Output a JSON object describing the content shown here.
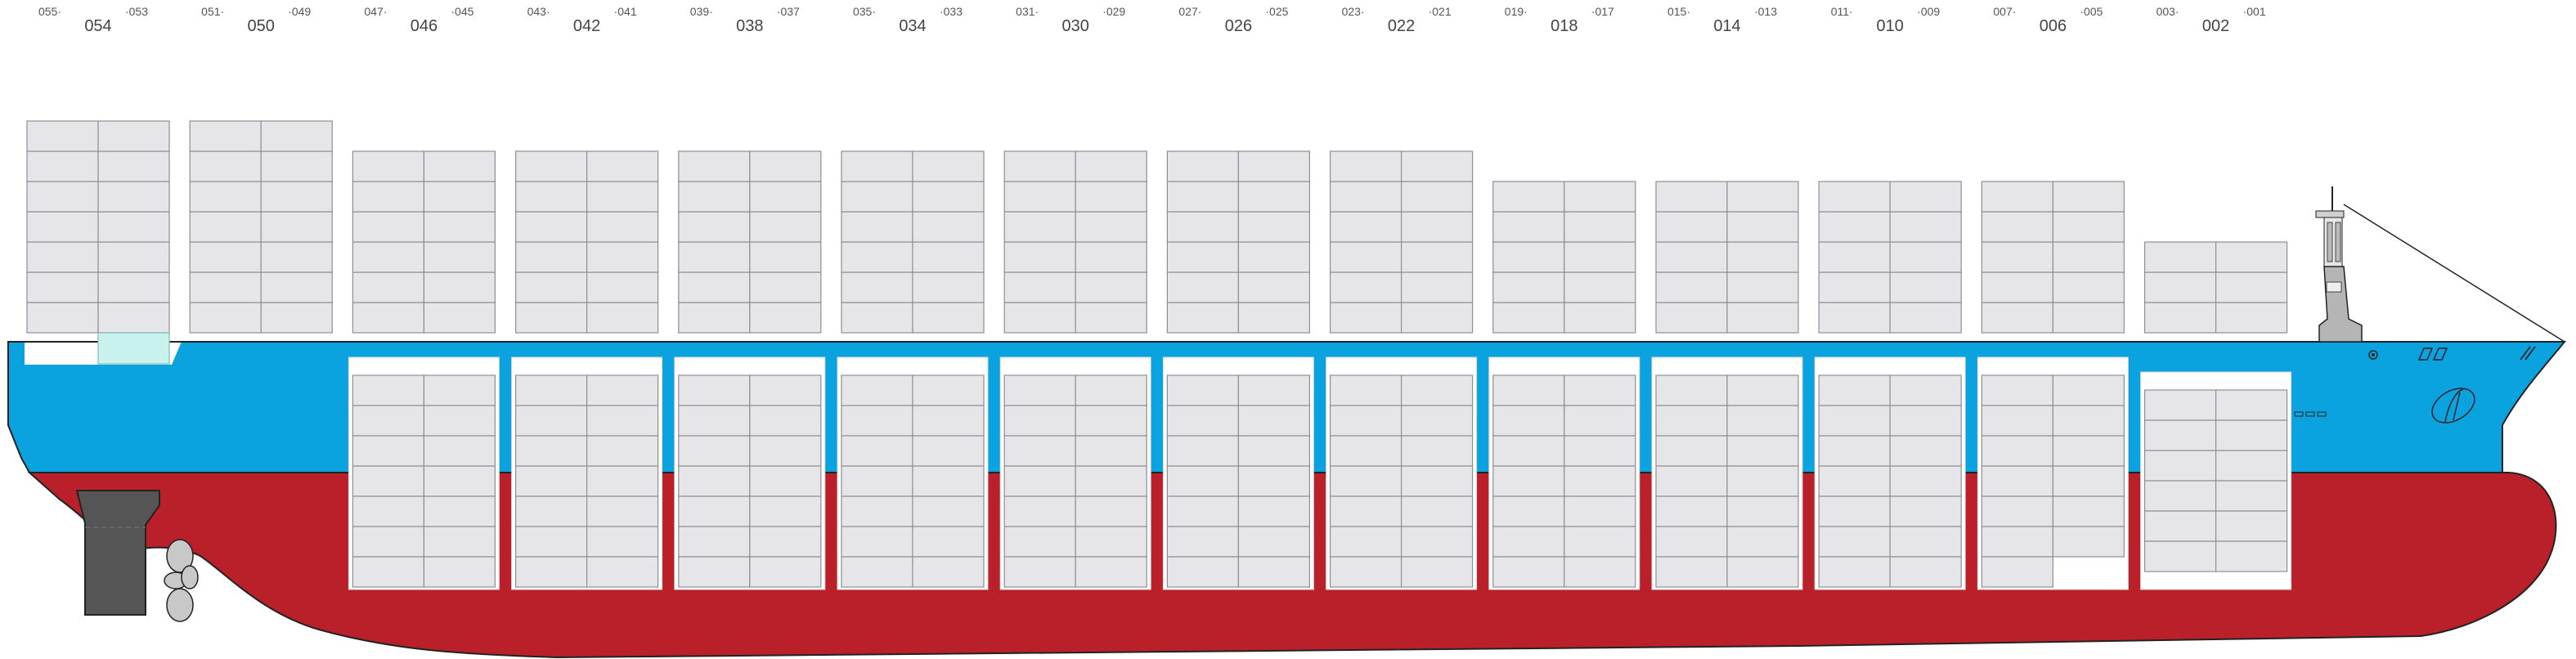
{
  "colors": {
    "hull_upper": "#0aa3df",
    "hull_lower": "#b9202a",
    "hull_outline": "#222222",
    "rudder": "#555555",
    "propeller": "#c8c8c8",
    "superstructure": "#b5b5b5",
    "container_fill": "#e6e6e9",
    "container_stroke": "#8e8e96",
    "highlight_fill": "#c9f1ee"
  },
  "bays": [
    {
      "main": "054",
      "aft": "055",
      "fwd": "053",
      "deck_tiers": 7,
      "hold_tiers": 0
    },
    {
      "main": "050",
      "aft": "051",
      "fwd": "049",
      "deck_tiers": 7,
      "hold_tiers": 0
    },
    {
      "main": "046",
      "aft": "047",
      "fwd": "045",
      "deck_tiers": 6,
      "hold_tiers": 7
    },
    {
      "main": "042",
      "aft": "043",
      "fwd": "041",
      "deck_tiers": 6,
      "hold_tiers": 7
    },
    {
      "main": "038",
      "aft": "039",
      "fwd": "037",
      "deck_tiers": 6,
      "hold_tiers": 7
    },
    {
      "main": "034",
      "aft": "035",
      "fwd": "033",
      "deck_tiers": 6,
      "hold_tiers": 7
    },
    {
      "main": "030",
      "aft": "031",
      "fwd": "029",
      "deck_tiers": 6,
      "hold_tiers": 7
    },
    {
      "main": "026",
      "aft": "027",
      "fwd": "025",
      "deck_tiers": 6,
      "hold_tiers": 7
    },
    {
      "main": "022",
      "aft": "023",
      "fwd": "021",
      "deck_tiers": 6,
      "hold_tiers": 7
    },
    {
      "main": "018",
      "aft": "019",
      "fwd": "017",
      "deck_tiers": 5,
      "hold_tiers": 7
    },
    {
      "main": "014",
      "aft": "015",
      "fwd": "013",
      "deck_tiers": 5,
      "hold_tiers": 7
    },
    {
      "main": "010",
      "aft": "011",
      "fwd": "009",
      "deck_tiers": 5,
      "hold_tiers": 7
    },
    {
      "main": "006",
      "aft": "007",
      "fwd": "005",
      "deck_tiers": 5,
      "hold_tiers": 6
    },
    {
      "main": "002",
      "aft": "003",
      "fwd": "001",
      "deck_tiers": 3,
      "hold_tiers": 6
    }
  ],
  "icons": [
    "rudder-icon",
    "propeller-icon",
    "bridge-mast-icon",
    "bulbous-bow-icon",
    "ship-name-marking-icon"
  ]
}
